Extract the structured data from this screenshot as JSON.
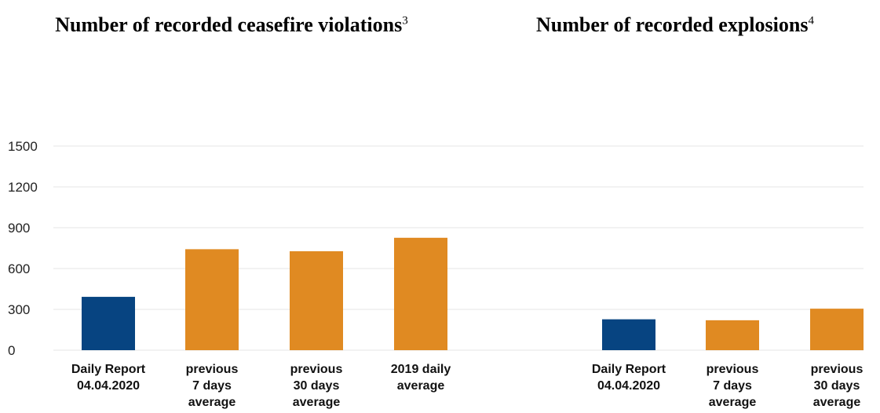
{
  "colors": {
    "current": "#074481",
    "comparison": "#E08A22",
    "grid": "#e6e6e6"
  },
  "chart_data": [
    {
      "type": "bar",
      "title": "Number of recorded ceasefire violations",
      "title_footnote": "3",
      "categories": [
        [
          "Daily Report",
          "04.04.2020"
        ],
        [
          "previous",
          "7 days",
          "average"
        ],
        [
          "previous",
          "30 days",
          "average"
        ],
        [
          "2019 daily",
          "average"
        ]
      ],
      "values": [
        392,
        742,
        727,
        826
      ],
      "ylim": [
        0,
        1500
      ],
      "yticks": [
        0,
        300,
        600,
        900,
        1200,
        1500
      ],
      "grid": true
    },
    {
      "type": "bar",
      "title": "Number of recorded explosions",
      "title_footnote": "4",
      "categories": [
        [
          "Daily Report",
          "04.04.2020"
        ],
        [
          "previous",
          "7 days",
          "average"
        ],
        [
          "previous",
          "30 days",
          "average"
        ]
      ],
      "values": [
        227,
        220,
        305
      ],
      "ylim": [
        0,
        1500
      ],
      "grid": true
    }
  ]
}
